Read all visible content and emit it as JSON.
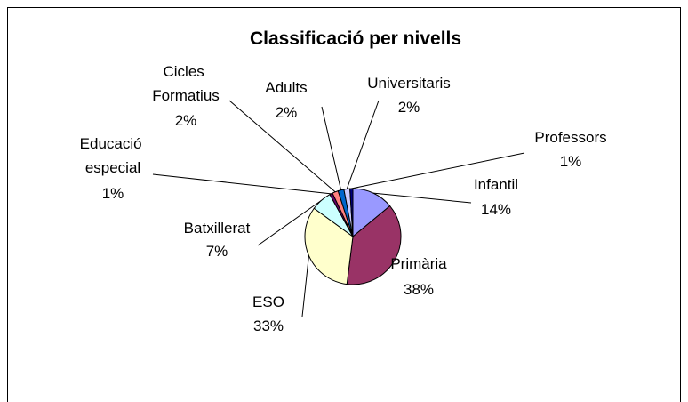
{
  "chart_data": {
    "type": "pie",
    "title": "Classificació per nivells",
    "categories": [
      "Infantil",
      "Primària",
      "ESO",
      "Batxillerat",
      "Educació especial",
      "Cicles Formatius",
      "Adults",
      "Universitaris",
      "Professors"
    ],
    "values": [
      14,
      38,
      33,
      7,
      1,
      2,
      2,
      2,
      1
    ],
    "value_labels": [
      "14%",
      "38%",
      "33%",
      "7%",
      "1%",
      "2%",
      "2%",
      "2%",
      "1%"
    ],
    "colors": [
      "#9999ff",
      "#993366",
      "#ffffcc",
      "#ccffff",
      "#660066",
      "#ff8080",
      "#0066cc",
      "#ccccff",
      "#000080"
    ]
  }
}
